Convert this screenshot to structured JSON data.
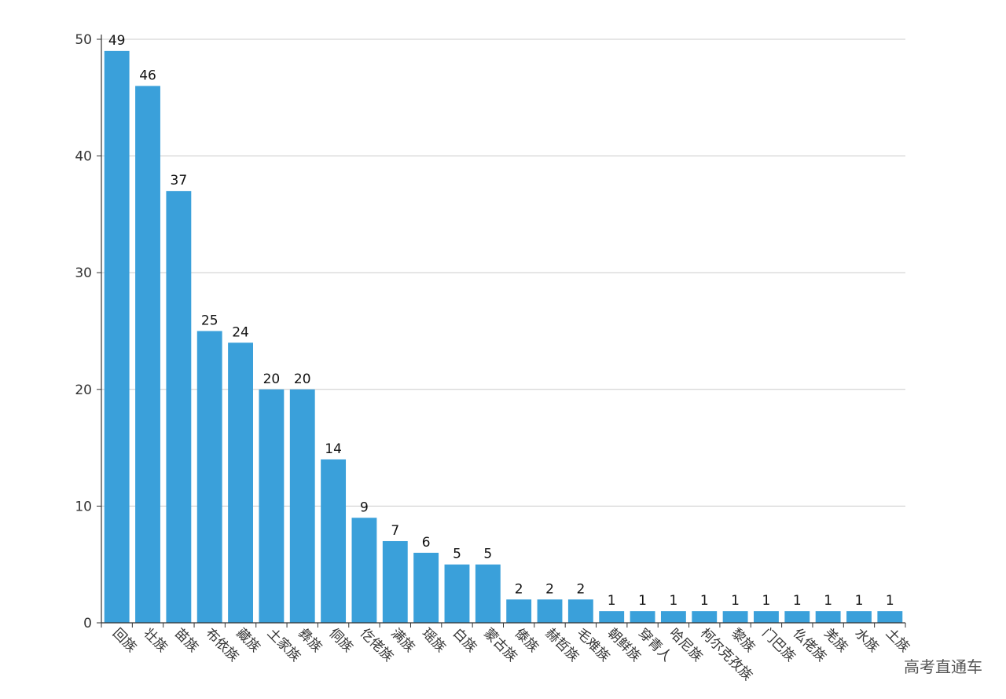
{
  "chart_data": {
    "type": "bar",
    "categories": [
      "回族",
      "壮族",
      "苗族",
      "布依族",
      "藏族",
      "土家族",
      "彝族",
      "侗族",
      "仡佬族",
      "满族",
      "瑶族",
      "白族",
      "蒙古族",
      "傣族",
      "赫哲族",
      "毛难族",
      "朝鲜族",
      "穿青人",
      "哈尼族",
      "柯尔克孜族",
      "黎族",
      "门巴族",
      "仫佬族",
      "羌族",
      "水族",
      "土族"
    ],
    "values": [
      49,
      46,
      37,
      25,
      24,
      20,
      20,
      14,
      9,
      7,
      6,
      5,
      5,
      2,
      2,
      2,
      1,
      1,
      1,
      1,
      1,
      1,
      1,
      1,
      1,
      1
    ],
    "ylim": [
      0,
      50
    ],
    "yticks": [
      0,
      10,
      20,
      30,
      40,
      50
    ],
    "grid": true,
    "colors": {
      "bar": "#3aa0da",
      "grid": "#cccccc",
      "axis": "#333333"
    }
  },
  "watermark": "高考直通车"
}
